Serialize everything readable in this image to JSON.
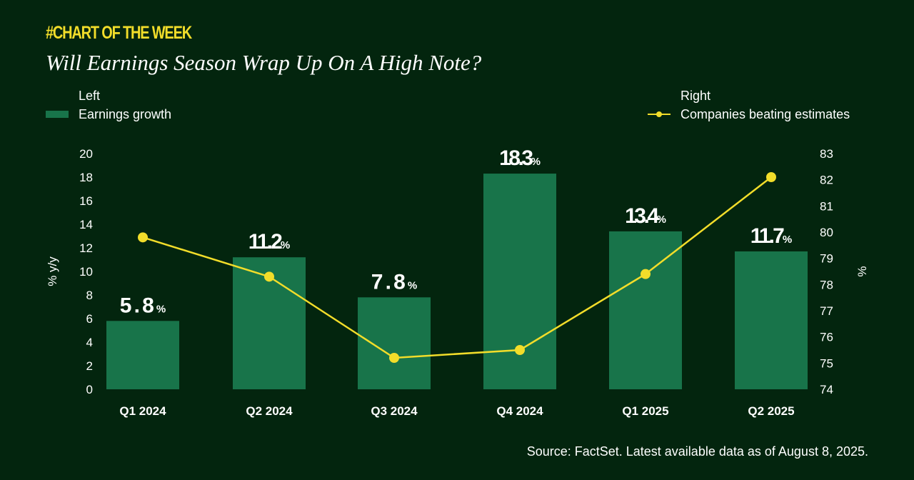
{
  "header": {
    "kicker": "#CHART OF THE WEEK",
    "title": "Will Earnings Season Wrap Up On A High Note?"
  },
  "legend": {
    "left_heading": "Left",
    "left_series": "Earnings growth",
    "right_heading": "Right",
    "right_series": "Companies beating estimates"
  },
  "source": "Source: FactSet. Latest available data as of August 8, 2025.",
  "colors": {
    "background": "#03250e",
    "bar": "#18744a",
    "line": "#f2dd2a",
    "accent": "#f2dd2a"
  },
  "chart_data": {
    "type": "bar+line",
    "categories": [
      "Q1 2024",
      "Q2 2024",
      "Q3 2024",
      "Q4 2024",
      "Q1 2025",
      "Q2 2025"
    ],
    "series": [
      {
        "name": "Earnings growth",
        "type": "bar",
        "axis": "left",
        "values": [
          5.8,
          11.2,
          7.8,
          18.3,
          13.4,
          11.7
        ],
        "data_labels": [
          "5.8",
          "11.2",
          "7.8",
          "18.3",
          "13.4",
          "11.7"
        ],
        "label_suffix": "%"
      },
      {
        "name": "Companies beating estimates",
        "type": "line",
        "axis": "right",
        "values": [
          79.8,
          78.3,
          75.2,
          75.5,
          78.4,
          82.1
        ]
      }
    ],
    "ylabel_left": "% y/y",
    "ylim_left": [
      0,
      20
    ],
    "yticks_left": [
      0,
      2,
      4,
      6,
      8,
      10,
      12,
      14,
      16,
      18,
      20
    ],
    "ylabel_right": "%",
    "ylim_right": [
      74,
      83
    ],
    "yticks_right": [
      74,
      75,
      76,
      77,
      78,
      79,
      80,
      81,
      82,
      83
    ],
    "grid": false,
    "legend_placement": "top"
  }
}
